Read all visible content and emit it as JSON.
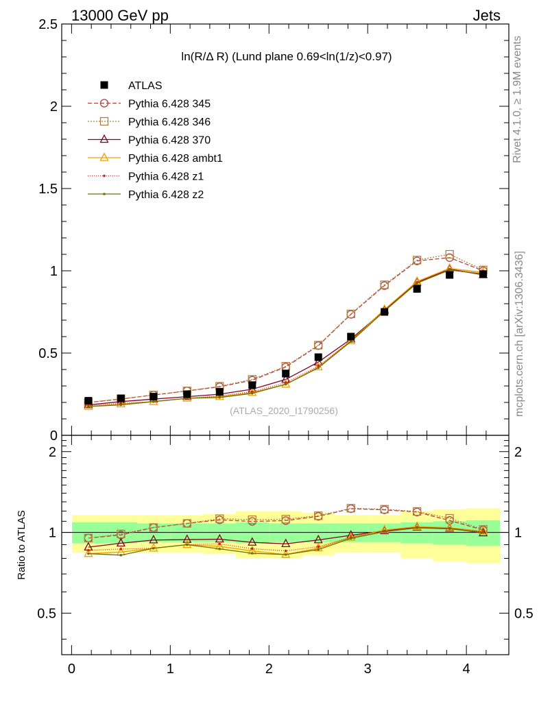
{
  "header": {
    "left_title": "13000 GeV pp",
    "right_title": "Jets"
  },
  "side_labels": {
    "rivet": "Rivet 4.1.0, ≥ 1.9M events",
    "mcplots": "mcplots.cern.ch [arXiv:1306.3436]"
  },
  "chart_data": {
    "type": "line",
    "title": "ln(R/Δ R) (Lund plane 0.69<ln(1/z)<0.97)",
    "watermark": "(ATLAS_2020_I1790256)",
    "x": [
      0.17,
      0.5,
      0.83,
      1.17,
      1.5,
      1.83,
      2.17,
      2.5,
      2.83,
      3.17,
      3.5,
      3.83,
      4.17
    ],
    "xlim": [
      -0.1,
      4.43
    ],
    "xticks": [
      "0",
      "1",
      "2",
      "3",
      "4"
    ],
    "main": {
      "ylim": [
        0,
        2.5
      ],
      "yticks": [
        "0",
        "0.5",
        "1",
        "1.5",
        "2",
        "2.5"
      ]
    },
    "ratio": {
      "ylabel": "Ratio to ATLAS",
      "ylim": [
        0.35,
        2.3
      ],
      "yticks": [
        "0.5",
        "1",
        "2"
      ],
      "band_inner": [
        0.09,
        0.09,
        0.08,
        0.08,
        0.08,
        0.09,
        0.08,
        0.08,
        0.08,
        0.08,
        0.09,
        0.1,
        0.11
      ],
      "band_outer": [
        0.16,
        0.16,
        0.16,
        0.16,
        0.17,
        0.2,
        0.2,
        0.18,
        0.16,
        0.16,
        0.2,
        0.22,
        0.23
      ],
      "band_colors": {
        "inner": "#99ff99",
        "outer": "#ffff99"
      }
    },
    "data_series": {
      "name": "ATLAS",
      "color": "#000000",
      "values": [
        0.21,
        0.225,
        0.235,
        0.25,
        0.265,
        0.305,
        0.375,
        0.475,
        0.6,
        0.75,
        0.89,
        0.975,
        0.98
      ]
    },
    "series": [
      {
        "name": "Pythia 6.428 345",
        "color": "#b04040",
        "marker": "circle",
        "dash": "6,3",
        "values": [
          0.2,
          0.22,
          0.245,
          0.27,
          0.295,
          0.335,
          0.415,
          0.545,
          0.735,
          0.91,
          1.06,
          1.08,
          1.0
        ]
      },
      {
        "name": "Pythia 6.428 346",
        "color": "#b08040",
        "marker": "square",
        "dash": "2,2",
        "values": [
          0.2,
          0.222,
          0.245,
          0.27,
          0.298,
          0.34,
          0.42,
          0.548,
          0.738,
          0.915,
          1.065,
          1.1,
          1.005
        ]
      },
      {
        "name": "Pythia 6.428 370",
        "color": "#800020",
        "marker": "triangle",
        "dash": "",
        "values": [
          0.185,
          0.205,
          0.22,
          0.235,
          0.25,
          0.28,
          0.34,
          0.445,
          0.585,
          0.76,
          0.93,
          1.01,
          0.975
        ]
      },
      {
        "name": "Pythia 6.428 ambt1",
        "color": "#f0a000",
        "marker": "triangle",
        "dash": "",
        "values": [
          0.175,
          0.19,
          0.205,
          0.225,
          0.235,
          0.26,
          0.31,
          0.415,
          0.575,
          0.765,
          0.935,
          1.015,
          0.99
        ]
      },
      {
        "name": "Pythia 6.428 z1",
        "color": "#d02020",
        "marker": "dot",
        "dash": "1,2",
        "values": [
          0.18,
          0.195,
          0.205,
          0.225,
          0.24,
          0.265,
          0.32,
          0.42,
          0.575,
          0.76,
          0.93,
          1.01,
          0.985
        ]
      },
      {
        "name": "Pythia 6.428 z2",
        "color": "#707000",
        "marker": "dot",
        "dash": "",
        "values": [
          0.175,
          0.185,
          0.205,
          0.225,
          0.23,
          0.255,
          0.31,
          0.41,
          0.57,
          0.755,
          0.925,
          1.005,
          0.98
        ]
      }
    ]
  }
}
